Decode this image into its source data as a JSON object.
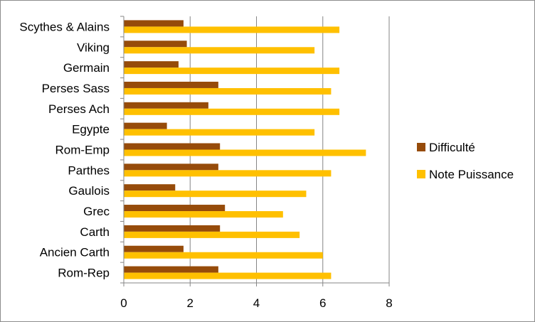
{
  "chart_data": {
    "type": "bar",
    "orientation": "horizontal",
    "categories": [
      "Scythes & Alains",
      "Viking",
      "Germain",
      "Perses Sass",
      "Perses Ach",
      "Egypte",
      "Rom-Emp",
      "Parthes",
      "Gaulois",
      "Grec",
      "Carth",
      "Ancien Carth",
      "Rom-Rep"
    ],
    "series": [
      {
        "name": "Difficulté",
        "color": "#964B0A",
        "values": [
          1.8,
          1.9,
          1.65,
          2.85,
          2.55,
          1.3,
          2.9,
          2.85,
          1.55,
          3.05,
          2.9,
          1.8,
          2.85
        ]
      },
      {
        "name": "Note Puissance",
        "color": "#FFC000",
        "values": [
          6.5,
          5.75,
          6.5,
          6.25,
          6.5,
          5.75,
          7.3,
          6.25,
          5.5,
          4.8,
          5.3,
          6.0,
          6.25
        ]
      }
    ],
    "xlim": [
      0,
      8
    ],
    "xticks": [
      "0",
      "2",
      "4",
      "6",
      "8"
    ],
    "grid": "vertical",
    "legend_position": "right"
  }
}
